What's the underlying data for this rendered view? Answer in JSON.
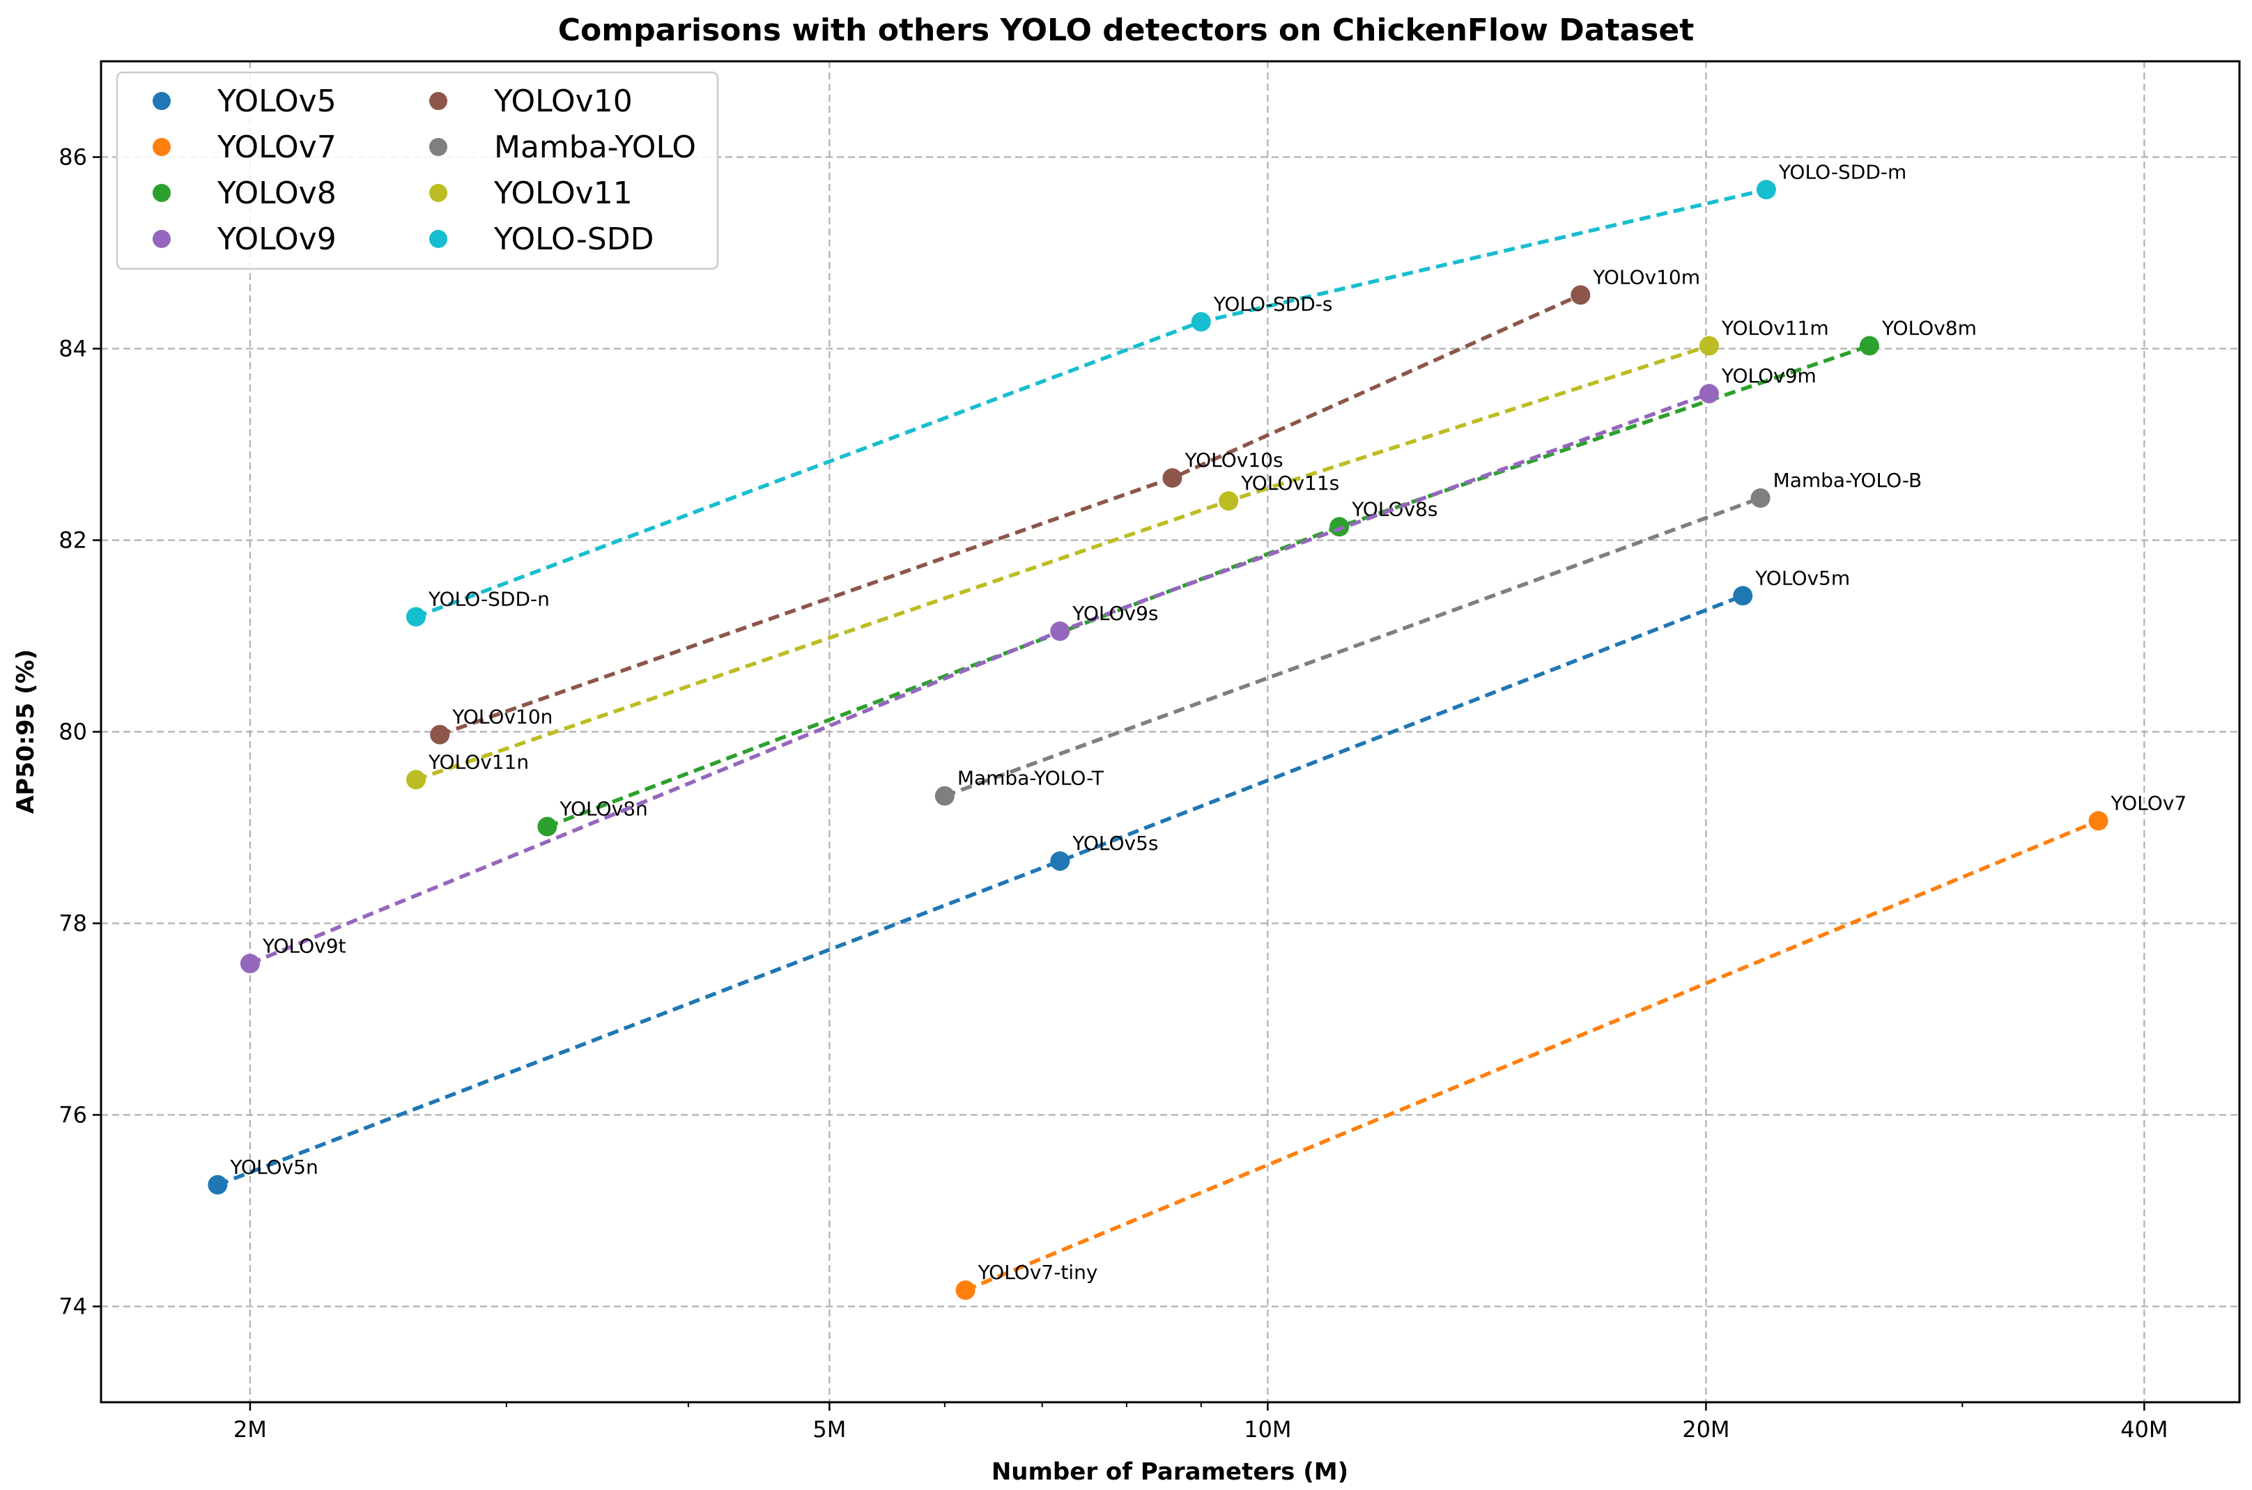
{
  "chart_data": {
    "type": "scatter",
    "title": "Comparisons with others YOLO detectors on ChickenFlow Dataset",
    "xlabel": "Number of Parameters (M)",
    "ylabel": "AP50:95 (%)",
    "xscale": "log",
    "xlim": [
      1.58,
      46.5
    ],
    "ylim": [
      73.0,
      87.0
    ],
    "xticks": [
      {
        "value": 2,
        "label": "2M"
      },
      {
        "value": 5,
        "label": "5M"
      },
      {
        "value": 10,
        "label": "10M"
      },
      {
        "value": 20,
        "label": "20M"
      },
      {
        "value": 40,
        "label": "40M"
      }
    ],
    "yticks": [
      {
        "value": 74,
        "label": "74"
      },
      {
        "value": 76,
        "label": "76"
      },
      {
        "value": 78,
        "label": "78"
      },
      {
        "value": 80,
        "label": "80"
      },
      {
        "value": 82,
        "label": "82"
      },
      {
        "value": 84,
        "label": "84"
      },
      {
        "value": 86,
        "label": "86"
      }
    ],
    "grid": true,
    "legend_position": "top-left",
    "series": [
      {
        "name": "YOLOv5",
        "color": "#1f77b4",
        "points": [
          {
            "label": "YOLOv5n",
            "x": 1.9,
            "y": 75.27
          },
          {
            "label": "YOLOv5s",
            "x": 7.2,
            "y": 78.65
          },
          {
            "label": "YOLOv5m",
            "x": 21.2,
            "y": 81.42
          }
        ]
      },
      {
        "name": "YOLOv7",
        "color": "#ff7f0e",
        "points": [
          {
            "label": "YOLOv7-tiny",
            "x": 6.2,
            "y": 74.17
          },
          {
            "label": "YOLOv7",
            "x": 37.2,
            "y": 79.07
          }
        ]
      },
      {
        "name": "YOLOv8",
        "color": "#2ca02c",
        "points": [
          {
            "label": "YOLOv8n",
            "x": 3.2,
            "y": 79.01
          },
          {
            "label": "YOLOv8s",
            "x": 11.2,
            "y": 82.14
          },
          {
            "label": "YOLOv8m",
            "x": 25.9,
            "y": 84.03
          }
        ]
      },
      {
        "name": "YOLOv9",
        "color": "#9467bd",
        "points": [
          {
            "label": "YOLOv9t",
            "x": 2.0,
            "y": 77.58
          },
          {
            "label": "YOLOv9s",
            "x": 7.2,
            "y": 81.05
          },
          {
            "label": "YOLOv9m",
            "x": 20.1,
            "y": 83.53
          }
        ]
      },
      {
        "name": "YOLOv10",
        "color": "#8c564b",
        "points": [
          {
            "label": "YOLOv10n",
            "x": 2.7,
            "y": 79.97
          },
          {
            "label": "YOLOv10s",
            "x": 8.6,
            "y": 82.65
          },
          {
            "label": "YOLOv10m",
            "x": 16.4,
            "y": 84.56
          }
        ]
      },
      {
        "name": "Mamba-YOLO",
        "color": "#7f7f7f",
        "points": [
          {
            "label": "Mamba-YOLO-T",
            "x": 6.0,
            "y": 79.33
          },
          {
            "label": "Mamba-YOLO-B",
            "x": 21.8,
            "y": 82.44
          }
        ]
      },
      {
        "name": "YOLOv11",
        "color": "#bcbd22",
        "points": [
          {
            "label": "YOLOv11n",
            "x": 2.6,
            "y": 79.5
          },
          {
            "label": "YOLOv11s",
            "x": 9.4,
            "y": 82.41
          },
          {
            "label": "YOLOv11m",
            "x": 20.1,
            "y": 84.03
          }
        ]
      },
      {
        "name": "YOLO-SDD",
        "color": "#17becf",
        "points": [
          {
            "label": "YOLO-SDD-n",
            "x": 2.6,
            "y": 81.2
          },
          {
            "label": "YOLO-SDD-s",
            "x": 9.0,
            "y": 84.28
          },
          {
            "label": "YOLO-SDD-m",
            "x": 22.0,
            "y": 85.66
          }
        ]
      }
    ]
  }
}
